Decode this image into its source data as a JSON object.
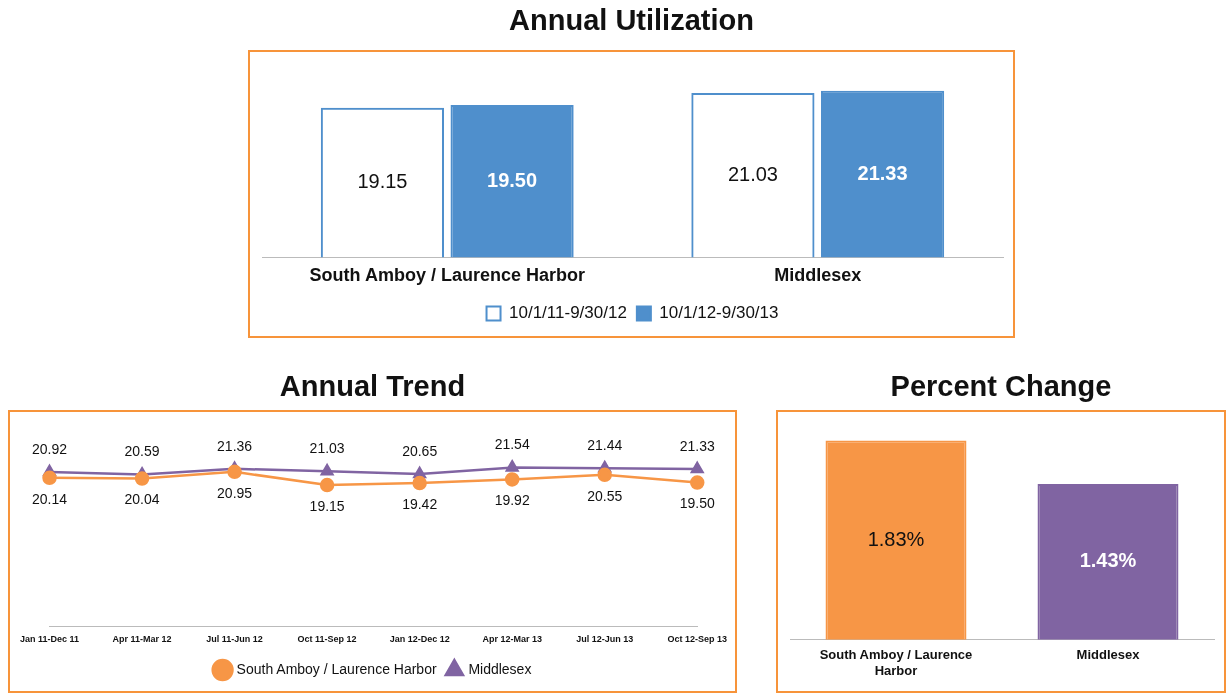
{
  "chart_data": [
    {
      "type": "bar",
      "title": "Annual Utilization",
      "categories": [
        "South Amboy / Laurence Harbor",
        "Middlesex"
      ],
      "legend": "bottom",
      "grid": false,
      "series": [
        {
          "name": "10/1/11-9/30/12",
          "color": "#4f8fcc",
          "values": [
            19.15,
            21.03
          ],
          "value_labels": [
            "19.15",
            "21.03"
          ]
        },
        {
          "name": "10/1/12-9/30/13",
          "color": "#4f8fcc",
          "values": [
            19.5,
            21.33
          ],
          "value_labels": [
            "19.50",
            "21.33"
          ]
        }
      ]
    },
    {
      "type": "line",
      "title": "Annual Trend",
      "categories": [
        "Jan 11-Dec 11",
        "Apr 11-Mar 12",
        "Jul 11-Jun 12",
        "Oct 11-Sep 12",
        "Jan 12-Dec 12",
        "Apr 12-Mar 13",
        "Jul 12-Jun 13",
        "Oct 12-Sep 13"
      ],
      "legend": "bottom",
      "grid": false,
      "series": [
        {
          "name": "South Amboy / Laurence Harbor",
          "color": "#f79646",
          "marker": "circle",
          "values": [
            20.14,
            20.04,
            20.95,
            19.15,
            19.42,
            19.92,
            20.55,
            19.5
          ],
          "value_labels": [
            "20.14",
            "20.04",
            "20.95",
            "19.15",
            "19.42",
            "19.92",
            "20.55",
            "19.50"
          ]
        },
        {
          "name": "Middlesex",
          "color": "#8064a2",
          "marker": "triangle",
          "values": [
            20.92,
            20.59,
            21.36,
            21.03,
            20.65,
            21.54,
            21.44,
            21.33
          ],
          "value_labels": [
            "20.92",
            "20.59",
            "21.36",
            "21.03",
            "20.65",
            "21.54",
            "21.44",
            "21.33"
          ]
        }
      ]
    },
    {
      "type": "bar",
      "title": "Percent Change",
      "categories": [
        "South Amboy / Laurence Harbor",
        "Middlesex"
      ],
      "grid": false,
      "values": [
        1.83,
        1.43
      ],
      "colors": [
        "#f79646",
        "#8064a2"
      ],
      "value_labels": [
        "1.83%",
        "1.43%"
      ]
    }
  ]
}
